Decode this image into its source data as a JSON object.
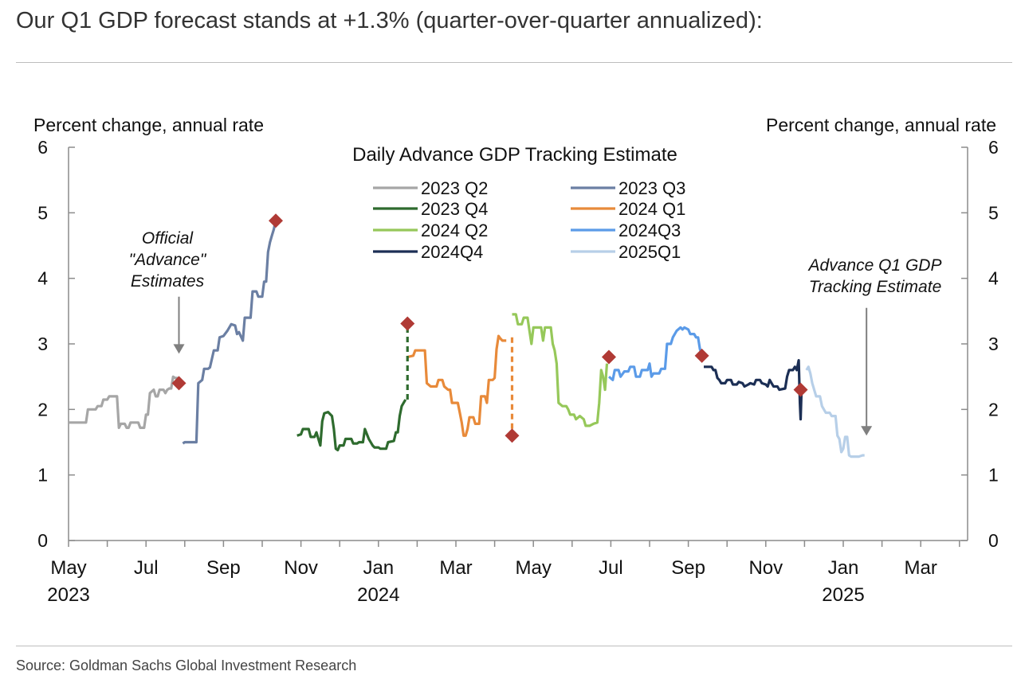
{
  "headline": "Our Q1 GDP forecast stands at +1.3% (quarter-over-quarter annualized):",
  "source": "Source: Goldman Sachs Global Investment Research",
  "chart_data": {
    "type": "line",
    "title": "Daily Advance GDP Tracking Estimate",
    "ylabel_left": "Percent change, annual rate",
    "ylabel_right": "Percent change, annual rate",
    "ylim": [
      0,
      6
    ],
    "y_ticks": [
      "0",
      "1",
      "2",
      "3",
      "4",
      "5",
      "6"
    ],
    "x_ticks": [
      {
        "month": 0,
        "label": "May",
        "year": "2023"
      },
      {
        "month": 2,
        "label": "Jul",
        "year": ""
      },
      {
        "month": 4,
        "label": "Sep",
        "year": ""
      },
      {
        "month": 6,
        "label": "Nov",
        "year": ""
      },
      {
        "month": 8,
        "label": "Jan",
        "year": "2024"
      },
      {
        "month": 10,
        "label": "Mar",
        "year": ""
      },
      {
        "month": 12,
        "label": "May",
        "year": ""
      },
      {
        "month": 14,
        "label": "Jul",
        "year": ""
      },
      {
        "month": 16,
        "label": "Sep",
        "year": ""
      },
      {
        "month": 18,
        "label": "Nov",
        "year": ""
      },
      {
        "month": 20,
        "label": "Jan",
        "year": "2025"
      },
      {
        "month": 22,
        "label": "Mar",
        "year": ""
      }
    ],
    "x_unit": "months since May 1, 2023",
    "series": [
      {
        "name": "2023 Q2",
        "color": "#a6a6a6",
        "points": [
          [
            0.0,
            1.8
          ],
          [
            0.45,
            1.8
          ],
          [
            0.5,
            2.0
          ],
          [
            0.7,
            2.0
          ],
          [
            0.75,
            2.05
          ],
          [
            0.85,
            2.05
          ],
          [
            0.9,
            2.15
          ],
          [
            1.0,
            2.15
          ],
          [
            1.05,
            2.2
          ],
          [
            1.15,
            2.2
          ],
          [
            1.25,
            2.2
          ],
          [
            1.3,
            1.72
          ],
          [
            1.35,
            1.78
          ],
          [
            1.45,
            1.78
          ],
          [
            1.5,
            1.72
          ],
          [
            1.55,
            1.72
          ],
          [
            1.6,
            1.8
          ],
          [
            1.8,
            1.8
          ],
          [
            1.85,
            1.72
          ],
          [
            1.95,
            1.72
          ],
          [
            2.0,
            1.92
          ],
          [
            2.05,
            1.92
          ],
          [
            2.1,
            2.25
          ],
          [
            2.2,
            2.3
          ],
          [
            2.25,
            2.2
          ],
          [
            2.3,
            2.2
          ],
          [
            2.35,
            2.3
          ],
          [
            2.45,
            2.3
          ],
          [
            2.5,
            2.25
          ],
          [
            2.55,
            2.3
          ],
          [
            2.6,
            2.32
          ],
          [
            2.65,
            2.32
          ],
          [
            2.7,
            2.5
          ],
          [
            2.75,
            2.48
          ],
          [
            2.85,
            2.48
          ],
          [
            2.9,
            2.42
          ]
        ]
      },
      {
        "name": "2023 Q3",
        "color": "#6b7fa3",
        "points": [
          [
            2.95,
            1.48
          ],
          [
            3.0,
            1.5
          ],
          [
            3.3,
            1.5
          ],
          [
            3.35,
            2.4
          ],
          [
            3.45,
            2.45
          ],
          [
            3.5,
            2.62
          ],
          [
            3.6,
            2.62
          ],
          [
            3.65,
            2.64
          ],
          [
            3.75,
            2.9
          ],
          [
            3.85,
            2.9
          ],
          [
            3.9,
            3.1
          ],
          [
            4.0,
            3.12
          ],
          [
            4.1,
            3.2
          ],
          [
            4.2,
            3.3
          ],
          [
            4.3,
            3.28
          ],
          [
            4.35,
            3.15
          ],
          [
            4.4,
            3.18
          ],
          [
            4.5,
            3.05
          ],
          [
            4.55,
            3.4
          ],
          [
            4.7,
            3.4
          ],
          [
            4.75,
            3.8
          ],
          [
            4.85,
            3.8
          ],
          [
            4.9,
            3.72
          ],
          [
            5.0,
            3.72
          ],
          [
            5.05,
            3.95
          ],
          [
            5.1,
            3.95
          ],
          [
            5.15,
            4.4
          ],
          [
            5.2,
            4.55
          ],
          [
            5.25,
            4.65
          ],
          [
            5.3,
            4.75
          ],
          [
            5.35,
            4.9
          ]
        ]
      },
      {
        "name": "2023 Q4",
        "color": "#2e6b2e",
        "points": [
          [
            5.9,
            1.6
          ],
          [
            6.0,
            1.62
          ],
          [
            6.05,
            1.7
          ],
          [
            6.2,
            1.7
          ],
          [
            6.25,
            1.58
          ],
          [
            6.35,
            1.58
          ],
          [
            6.4,
            1.65
          ],
          [
            6.5,
            1.45
          ],
          [
            6.55,
            1.82
          ],
          [
            6.6,
            1.94
          ],
          [
            6.7,
            1.96
          ],
          [
            6.8,
            1.9
          ],
          [
            6.85,
            1.7
          ],
          [
            6.9,
            1.4
          ],
          [
            6.95,
            1.38
          ],
          [
            7.0,
            1.45
          ],
          [
            7.1,
            1.45
          ],
          [
            7.15,
            1.55
          ],
          [
            7.3,
            1.55
          ],
          [
            7.35,
            1.48
          ],
          [
            7.45,
            1.48
          ],
          [
            7.5,
            1.5
          ],
          [
            7.6,
            1.5
          ],
          [
            7.65,
            1.7
          ],
          [
            7.75,
            1.55
          ],
          [
            7.8,
            1.5
          ],
          [
            7.85,
            1.45
          ],
          [
            7.9,
            1.42
          ],
          [
            8.0,
            1.42
          ],
          [
            8.05,
            1.4
          ],
          [
            8.2,
            1.4
          ],
          [
            8.25,
            1.5
          ],
          [
            8.4,
            1.52
          ],
          [
            8.45,
            1.65
          ],
          [
            8.5,
            1.65
          ],
          [
            8.55,
            1.9
          ],
          [
            8.6,
            2.05
          ],
          [
            8.65,
            2.1
          ],
          [
            8.7,
            2.15
          ]
        ]
      },
      {
        "name": "2024 Q1",
        "color": "#e88a3a",
        "points": [
          [
            8.75,
            2.8
          ],
          [
            8.9,
            2.82
          ],
          [
            8.95,
            2.9
          ],
          [
            9.2,
            2.9
          ],
          [
            9.25,
            2.4
          ],
          [
            9.35,
            2.35
          ],
          [
            9.5,
            2.35
          ],
          [
            9.55,
            2.45
          ],
          [
            9.65,
            2.45
          ],
          [
            9.7,
            2.35
          ],
          [
            9.8,
            2.3
          ],
          [
            9.85,
            2.3
          ],
          [
            9.9,
            2.1
          ],
          [
            10.05,
            2.1
          ],
          [
            10.1,
            1.95
          ],
          [
            10.15,
            1.8
          ],
          [
            10.2,
            1.6
          ],
          [
            10.25,
            1.6
          ],
          [
            10.3,
            1.7
          ],
          [
            10.35,
            1.88
          ],
          [
            10.45,
            1.88
          ],
          [
            10.5,
            1.78
          ],
          [
            10.6,
            1.78
          ],
          [
            10.65,
            2.2
          ],
          [
            10.75,
            2.2
          ],
          [
            10.8,
            2.1
          ],
          [
            10.85,
            2.45
          ],
          [
            10.95,
            2.45
          ],
          [
            11.0,
            2.48
          ],
          [
            11.05,
            2.92
          ],
          [
            11.1,
            3.12
          ],
          [
            11.15,
            3.08
          ],
          [
            11.2,
            3.05
          ],
          [
            11.3,
            3.05
          ]
        ]
      },
      {
        "name": "2024 Q2",
        "color": "#96c85a",
        "points": [
          [
            11.45,
            3.45
          ],
          [
            11.55,
            3.45
          ],
          [
            11.6,
            3.3
          ],
          [
            11.7,
            3.3
          ],
          [
            11.75,
            3.4
          ],
          [
            11.85,
            3.4
          ],
          [
            11.9,
            3.2
          ],
          [
            11.95,
            3.0
          ],
          [
            12.0,
            3.25
          ],
          [
            12.2,
            3.25
          ],
          [
            12.25,
            3.05
          ],
          [
            12.3,
            3.25
          ],
          [
            12.35,
            3.25
          ],
          [
            12.45,
            3.25
          ],
          [
            12.5,
            3.0
          ],
          [
            12.55,
            2.9
          ],
          [
            12.6,
            2.7
          ],
          [
            12.65,
            2.1
          ],
          [
            12.75,
            2.05
          ],
          [
            12.85,
            2.05
          ],
          [
            12.9,
            2.0
          ],
          [
            12.95,
            1.92
          ],
          [
            13.05,
            1.92
          ],
          [
            13.1,
            1.85
          ],
          [
            13.2,
            1.9
          ],
          [
            13.3,
            1.85
          ],
          [
            13.35,
            1.75
          ],
          [
            13.45,
            1.75
          ],
          [
            13.55,
            1.78
          ],
          [
            13.65,
            1.8
          ],
          [
            13.7,
            2.1
          ],
          [
            13.75,
            2.6
          ],
          [
            13.8,
            2.5
          ],
          [
            13.85,
            2.3
          ],
          [
            13.9,
            2.7
          ]
        ]
      },
      {
        "name": "2024Q3",
        "color": "#5b9be8",
        "points": [
          [
            13.95,
            2.5
          ],
          [
            14.05,
            2.45
          ],
          [
            14.1,
            2.6
          ],
          [
            14.2,
            2.6
          ],
          [
            14.25,
            2.5
          ],
          [
            14.35,
            2.58
          ],
          [
            14.45,
            2.58
          ],
          [
            14.5,
            2.65
          ],
          [
            14.6,
            2.65
          ],
          [
            14.65,
            2.5
          ],
          [
            14.75,
            2.5
          ],
          [
            14.8,
            2.6
          ],
          [
            14.95,
            2.6
          ],
          [
            15.0,
            2.7
          ],
          [
            15.05,
            2.5
          ],
          [
            15.1,
            2.55
          ],
          [
            15.25,
            2.55
          ],
          [
            15.3,
            2.62
          ],
          [
            15.4,
            2.62
          ],
          [
            15.45,
            3.0
          ],
          [
            15.55,
            3.0
          ],
          [
            15.6,
            3.1
          ],
          [
            15.7,
            3.2
          ],
          [
            15.8,
            3.25
          ],
          [
            15.85,
            3.22
          ],
          [
            15.9,
            3.25
          ],
          [
            16.0,
            3.22
          ],
          [
            16.05,
            3.15
          ],
          [
            16.15,
            3.15
          ],
          [
            16.2,
            3.1
          ],
          [
            16.25,
            3.1
          ],
          [
            16.3,
            2.92
          ],
          [
            16.35,
            2.85
          ]
        ]
      },
      {
        "name": "2024Q4",
        "color": "#1c2f55",
        "points": [
          [
            16.4,
            2.65
          ],
          [
            16.6,
            2.65
          ],
          [
            16.65,
            2.6
          ],
          [
            16.7,
            2.6
          ],
          [
            16.75,
            2.48
          ],
          [
            16.8,
            2.45
          ],
          [
            16.85,
            2.4
          ],
          [
            16.95,
            2.4
          ],
          [
            17.0,
            2.45
          ],
          [
            17.1,
            2.45
          ],
          [
            17.15,
            2.38
          ],
          [
            17.25,
            2.38
          ],
          [
            17.3,
            2.42
          ],
          [
            17.4,
            2.4
          ],
          [
            17.45,
            2.35
          ],
          [
            17.55,
            2.38
          ],
          [
            17.6,
            2.4
          ],
          [
            17.7,
            2.38
          ],
          [
            17.75,
            2.45
          ],
          [
            17.85,
            2.45
          ],
          [
            17.9,
            2.4
          ],
          [
            18.0,
            2.38
          ],
          [
            18.05,
            2.35
          ],
          [
            18.1,
            2.45
          ],
          [
            18.15,
            2.4
          ],
          [
            18.2,
            2.35
          ],
          [
            18.3,
            2.35
          ],
          [
            18.35,
            2.3
          ],
          [
            18.5,
            2.32
          ],
          [
            18.55,
            2.5
          ],
          [
            18.6,
            2.6
          ],
          [
            18.7,
            2.6
          ],
          [
            18.75,
            2.65
          ],
          [
            18.8,
            2.6
          ],
          [
            18.85,
            2.75
          ],
          [
            18.88,
            2.1
          ],
          [
            18.9,
            1.85
          ],
          [
            18.92,
            2.25
          ]
        ]
      },
      {
        "name": "2025Q1",
        "color": "#b7cfe8",
        "points": [
          [
            19.05,
            2.6
          ],
          [
            19.1,
            2.65
          ],
          [
            19.15,
            2.55
          ],
          [
            19.2,
            2.4
          ],
          [
            19.3,
            2.2
          ],
          [
            19.4,
            2.2
          ],
          [
            19.45,
            2.05
          ],
          [
            19.55,
            1.95
          ],
          [
            19.65,
            1.95
          ],
          [
            19.7,
            1.9
          ],
          [
            19.8,
            1.9
          ],
          [
            19.85,
            1.6
          ],
          [
            19.9,
            1.55
          ],
          [
            19.95,
            1.35
          ],
          [
            20.0,
            1.4
          ],
          [
            20.05,
            1.58
          ],
          [
            20.1,
            1.58
          ],
          [
            20.15,
            1.3
          ],
          [
            20.2,
            1.28
          ],
          [
            20.4,
            1.28
          ],
          [
            20.5,
            1.3
          ],
          [
            20.55,
            1.3
          ]
        ]
      }
    ],
    "dashed": [
      {
        "color": "#2e6b2e",
        "from": [
          8.75,
          2.15
        ],
        "to": [
          8.75,
          3.3
        ]
      },
      {
        "color": "#e88a3a",
        "from": [
          11.45,
          3.1
        ],
        "to": [
          11.45,
          1.6
        ]
      }
    ],
    "markers": [
      {
        "x": 2.85,
        "y": 2.4
      },
      {
        "x": 5.35,
        "y": 4.88
      },
      {
        "x": 8.75,
        "y": 3.31
      },
      {
        "x": 11.45,
        "y": 1.6
      },
      {
        "x": 13.95,
        "y": 2.8
      },
      {
        "x": 16.35,
        "y": 2.82
      },
      {
        "x": 18.9,
        "y": 2.3
      }
    ],
    "marker_color": "#b03a35",
    "annotations": [
      {
        "lines": [
          "Official",
          "\"Advance\"",
          "Estimates"
        ],
        "arrow_x": 2.85,
        "arrow_y_from": 3.72,
        "arrow_y_to": 2.85
      },
      {
        "lines": [
          "Advance Q1 GDP",
          "Tracking Estimate"
        ],
        "arrow_x": 20.6,
        "arrow_y_from": 3.55,
        "arrow_y_to": 1.6
      }
    ]
  }
}
